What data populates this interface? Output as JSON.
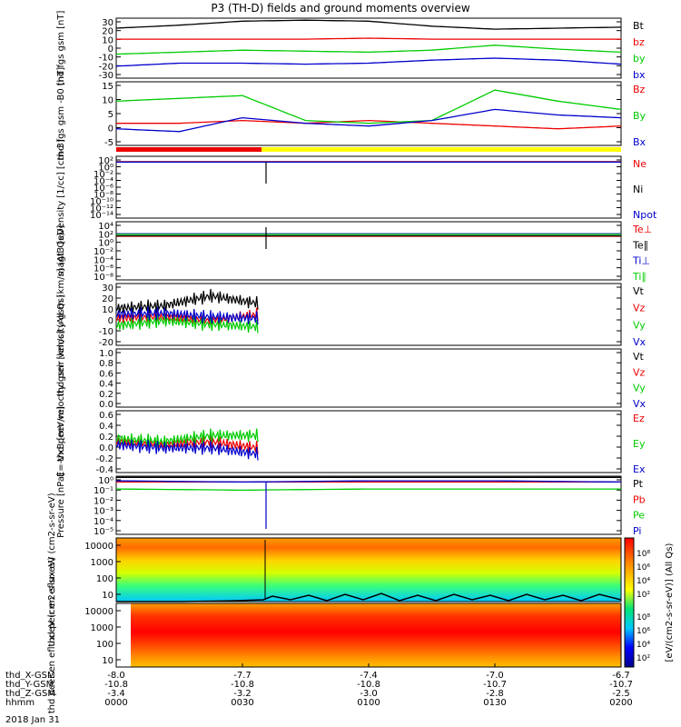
{
  "title": "P3 (TH-D) fields and ground moments overview",
  "colors": {
    "black": "#000000",
    "red": "#ee0000",
    "green": "#00cc00",
    "blue": "#0000cc",
    "yellow": "#ffff00"
  },
  "bottom_axis": {
    "rows": [
      {
        "label": "thd_X-GSM",
        "values": [
          "-8.0",
          "-7.7",
          "-7.4",
          "-7.0",
          "-6.7"
        ]
      },
      {
        "label": "thd_Y-GSM",
        "values": [
          "-10.8",
          "-10.8",
          "-10.8",
          "-10.7",
          "-10.7"
        ]
      },
      {
        "label": "thd_Z-GSM",
        "values": [
          "-3.4",
          "-3.2",
          "-3.0",
          "-2.8",
          "-2.5"
        ]
      },
      {
        "label": "hhmm",
        "values": [
          "0000",
          "0030",
          "0100",
          "0130",
          "0200"
        ]
      }
    ],
    "date": "2018 Jan 31"
  },
  "colorbar": {
    "label": "[eV/(cm2-s-sr-eV)] (All Qs)",
    "ticks1": [
      "10⁸",
      "10⁶",
      "10⁴",
      "10²"
    ],
    "ticks2": [
      "10⁸",
      "10⁶",
      "10⁴",
      "10²"
    ]
  },
  "chart_data": [
    {
      "type": "line",
      "panel": "fgs_gsm",
      "ylabel": "thd fgs gsm [nT]",
      "yticks": [
        "30",
        "20",
        "10",
        "0",
        "-10",
        "-20",
        "-30"
      ],
      "ylim": [
        -30,
        30
      ],
      "x": [
        "0000",
        "0015",
        "0030",
        "0045",
        "0100",
        "0115",
        "0130",
        "0145",
        "0200"
      ],
      "series": [
        {
          "name": "Bt",
          "color": "black",
          "values": [
            20,
            23,
            27,
            28,
            27,
            22,
            19,
            20,
            21
          ]
        },
        {
          "name": "bz",
          "color": "red",
          "values": [
            9,
            9,
            9,
            9,
            10,
            9,
            9,
            9,
            9
          ]
        },
        {
          "name": "by",
          "color": "green",
          "values": [
            -6,
            -4,
            -2,
            -3,
            -4,
            -2,
            3,
            -1,
            -4
          ]
        },
        {
          "name": "bx",
          "color": "blue",
          "values": [
            -18,
            -15,
            -15,
            -16,
            -15,
            -12,
            -10,
            -12,
            -16
          ]
        }
      ]
    },
    {
      "type": "line",
      "panel": "fgs_gsm_dsl",
      "ylabel": "thd fgs gsm -B0 [nT]",
      "yticks": [
        "15",
        "10",
        "5",
        "0",
        "-5"
      ],
      "ylim": [
        -7,
        16
      ],
      "x": [
        "0000",
        "0015",
        "0030",
        "0045",
        "0100",
        "0115",
        "0130",
        "0145",
        "0200"
      ],
      "series": [
        {
          "name": "Bz",
          "color": "red",
          "values": [
            1,
            1,
            2,
            1,
            2,
            1,
            0,
            -1,
            0
          ]
        },
        {
          "name": "By",
          "color": "green",
          "values": [
            9,
            10,
            11,
            2,
            1,
            2,
            13,
            9,
            6
          ]
        },
        {
          "name": "Bx",
          "color": "blue",
          "values": [
            -1,
            -2,
            3,
            1,
            0,
            2,
            6,
            4,
            3
          ]
        }
      ]
    },
    {
      "type": "line",
      "panel": "density",
      "ylabel": "Density [1/cc] [cm-3]",
      "yticks": [
        "10²",
        "10⁰",
        "10⁻²",
        "10⁻⁴",
        "10⁻⁶",
        "10⁻⁸",
        "10⁻¹⁰",
        "10⁻¹²",
        "10⁻¹⁴"
      ],
      "ylim": [
        -14,
        2
      ],
      "log": true,
      "x": [
        "0000",
        "0030",
        "0100",
        "0130",
        "0200"
      ],
      "series": [
        {
          "name": "Ne",
          "color": "red",
          "values": [
            0.6,
            0.6,
            0.6,
            0.6,
            0.6
          ]
        },
        {
          "name": "Ni",
          "color": "black",
          "values": [
            0.5,
            0.5,
            0.5,
            0.5,
            0.5
          ]
        },
        {
          "name": "Npot",
          "color": "blue",
          "values": [
            0.5,
            0.5,
            0.5,
            0.5,
            0.5
          ]
        }
      ]
    },
    {
      "type": "line",
      "panel": "temperature",
      "ylabel": "magt3 [eV]",
      "yticks": [
        "10⁴",
        "10²",
        "10⁰",
        "10⁻²",
        "10⁻⁴",
        "10⁻⁶",
        "10⁻⁸"
      ],
      "ylim": [
        -8,
        4
      ],
      "log": true,
      "x": [
        "0000",
        "0030",
        "0100",
        "0130",
        "0200"
      ],
      "series": [
        {
          "name": "Te⊥",
          "color": "red",
          "values": [
            1,
            1,
            1,
            1,
            1
          ]
        },
        {
          "name": "Te∥",
          "color": "black",
          "values": [
            1.1,
            1.1,
            1.1,
            1.1,
            1.1
          ]
        },
        {
          "name": "Ti⊥",
          "color": "blue",
          "values": [
            1.5,
            1.5,
            1.5,
            1.5,
            1.5
          ]
        },
        {
          "name": "Ti∥",
          "color": "green",
          "values": [
            1.4,
            1.4,
            1.4,
            1.4,
            1.4
          ]
        }
      ]
    },
    {
      "type": "line",
      "panel": "peir_velocity",
      "ylabel": "thd peir velocity gsm [km/s] (All Qs)",
      "yticks": [
        "30",
        "20",
        "10",
        "0",
        "-10",
        "-20"
      ],
      "ylim": [
        -20,
        30
      ],
      "x": [
        "0000",
        "0010",
        "0020",
        "0030"
      ],
      "series": [
        {
          "name": "Vt",
          "color": "black",
          "values": [
            10,
            12,
            20,
            14
          ]
        },
        {
          "name": "Vz",
          "color": "red",
          "values": [
            2,
            3,
            0,
            5
          ]
        },
        {
          "name": "Vy",
          "color": "green",
          "values": [
            -4,
            0,
            -3,
            -5
          ]
        },
        {
          "name": "Vx",
          "color": "blue",
          "values": [
            5,
            6,
            3,
            2
          ]
        }
      ]
    },
    {
      "type": "line",
      "panel": "peer_velocity",
      "ylabel": "thd peer velocity gsm [km/s] (All Qs)",
      "yticks": [
        "1.0",
        "0.8",
        "0.6",
        "0.4",
        "0.2",
        "0.0"
      ],
      "ylim": [
        0,
        1
      ],
      "series": [
        {
          "name": "Vt",
          "color": "black",
          "values": []
        },
        {
          "name": "Vz",
          "color": "red",
          "values": []
        },
        {
          "name": "Vy",
          "color": "green",
          "values": []
        },
        {
          "name": "Vx",
          "color": "blue",
          "values": []
        }
      ]
    },
    {
      "type": "line",
      "panel": "e_field",
      "ylabel": "E=-VxB [mV/m]",
      "yticks": [
        "0.6",
        "0.4",
        "0.2",
        "0.0",
        "-0.2",
        "-0.4"
      ],
      "ylim": [
        -0.4,
        0.6
      ],
      "x": [
        "0000",
        "0010",
        "0020",
        "0030"
      ],
      "series": [
        {
          "name": "Ez",
          "color": "red",
          "values": [
            0.1,
            0.05,
            0.1,
            0.0
          ]
        },
        {
          "name": "Ey",
          "color": "green",
          "values": [
            0.15,
            0.1,
            0.2,
            0.2
          ]
        },
        {
          "name": "Ex",
          "color": "blue",
          "values": [
            0.05,
            0.0,
            0.0,
            -0.1
          ]
        }
      ]
    },
    {
      "type": "line",
      "panel": "pressure",
      "ylabel": "Pressure [nPa]",
      "yticks": [
        "10⁰",
        "10⁻¹",
        "10⁻²",
        "10⁻³",
        "10⁻⁴",
        "10⁻⁵"
      ],
      "ylim": [
        -5,
        0
      ],
      "log": true,
      "x": [
        "0000",
        "0030",
        "0100",
        "0130",
        "0200"
      ],
      "series": [
        {
          "name": "Pt",
          "color": "black",
          "values": [
            -0.1,
            -0.1,
            -0.1,
            -0.1,
            -0.1
          ]
        },
        {
          "name": "Pb",
          "color": "red",
          "values": [
            -0.5,
            -0.5,
            -0.5,
            -0.5,
            -0.5
          ]
        },
        {
          "name": "Pe",
          "color": "green",
          "values": [
            -1.1,
            -1.2,
            -1.1,
            -1.1,
            -1.1
          ]
        },
        {
          "name": "Pi",
          "color": "blue",
          "values": [
            -0.4,
            -0.5,
            -0.4,
            -0.4,
            -0.5
          ]
        }
      ]
    },
    {
      "type": "heatmap",
      "panel": "peir_spectrogram",
      "ylabel": "thd peir en eflux eV (cm2-s-sr-eV)",
      "yticks": [
        "10000",
        "1000",
        "100",
        "10"
      ]
    },
    {
      "type": "heatmap",
      "panel": "peer_spectrogram",
      "ylabel": "thd peer en eflux eV (cm2-s-sr-eV)",
      "yticks": [
        "10000",
        "1000",
        "100",
        "10"
      ]
    }
  ]
}
